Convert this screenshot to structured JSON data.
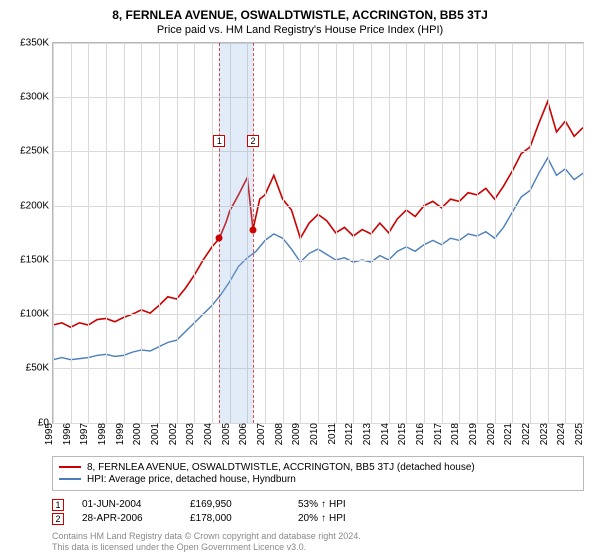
{
  "title": "8, FERNLEA AVENUE, OSWALDTWISTLE, ACCRINGTON, BB5 3TJ",
  "subtitle": "Price paid vs. HM Land Registry's House Price Index (HPI)",
  "chart": {
    "type": "line",
    "background_color": "#ffffff",
    "grid_color": "#d9d9d9",
    "axis_color": "#b8b8b8",
    "y": {
      "min": 0,
      "max": 350000,
      "step": 50000,
      "prefix": "£",
      "suffix": "K",
      "label_fontsize": 10
    },
    "x": {
      "min": 1995,
      "max": 2025,
      "step": 1,
      "label_fontsize": 10,
      "rotate": -90
    },
    "shaded_region": {
      "from_year": 2004.42,
      "to_year": 2006.32,
      "fill": "rgba(137,180,227,0.25)"
    },
    "ref_lines": [
      {
        "year": 2004.42,
        "color": "#cc0000",
        "dash": "4,3"
      },
      {
        "year": 2006.32,
        "color": "#cc0000",
        "dash": "4,3"
      }
    ],
    "ref_markers": [
      {
        "n": "1",
        "year": 2004.42,
        "y": 265000
      },
      {
        "n": "2",
        "year": 2006.32,
        "y": 265000
      }
    ],
    "sale_dots": [
      {
        "year": 2004.42,
        "value": 169950,
        "color": "#cc0000"
      },
      {
        "year": 2006.32,
        "value": 178000,
        "color": "#cc0000"
      }
    ],
    "series": [
      {
        "name": "8, FERNLEA AVENUE, OSWALDTWISTLE, ACCRINGTON, BB5 3TJ (detached house)",
        "color": "#cc0000",
        "width": 1.6,
        "points": [
          [
            1995,
            90000
          ],
          [
            1995.5,
            92000
          ],
          [
            1996,
            88000
          ],
          [
            1996.5,
            92000
          ],
          [
            1997,
            90000
          ],
          [
            1997.5,
            95000
          ],
          [
            1998,
            96000
          ],
          [
            1998.5,
            93000
          ],
          [
            1999,
            97000
          ],
          [
            1999.5,
            100000
          ],
          [
            2000,
            104000
          ],
          [
            2000.5,
            101000
          ],
          [
            2001,
            108000
          ],
          [
            2001.5,
            116000
          ],
          [
            2002,
            114000
          ],
          [
            2002.5,
            124000
          ],
          [
            2003,
            136000
          ],
          [
            2003.5,
            150000
          ],
          [
            2004,
            162000
          ],
          [
            2004.42,
            169950
          ],
          [
            2004.8,
            185000
          ],
          [
            2005,
            195000
          ],
          [
            2005.5,
            210000
          ],
          [
            2006,
            226000
          ],
          [
            2006.32,
            178000
          ],
          [
            2006.7,
            206000
          ],
          [
            2007,
            210000
          ],
          [
            2007.5,
            228000
          ],
          [
            2008,
            206000
          ],
          [
            2008.5,
            196000
          ],
          [
            2009,
            170000
          ],
          [
            2009.5,
            184000
          ],
          [
            2010,
            192000
          ],
          [
            2010.5,
            186000
          ],
          [
            2011,
            175000
          ],
          [
            2011.5,
            180000
          ],
          [
            2012,
            172000
          ],
          [
            2012.5,
            178000
          ],
          [
            2013,
            174000
          ],
          [
            2013.5,
            184000
          ],
          [
            2014,
            175000
          ],
          [
            2014.5,
            188000
          ],
          [
            2015,
            196000
          ],
          [
            2015.5,
            190000
          ],
          [
            2016,
            200000
          ],
          [
            2016.5,
            204000
          ],
          [
            2017,
            198000
          ],
          [
            2017.5,
            206000
          ],
          [
            2018,
            204000
          ],
          [
            2018.5,
            212000
          ],
          [
            2019,
            210000
          ],
          [
            2019.5,
            216000
          ],
          [
            2020,
            206000
          ],
          [
            2020.5,
            218000
          ],
          [
            2021,
            232000
          ],
          [
            2021.5,
            248000
          ],
          [
            2022,
            254000
          ],
          [
            2022.5,
            276000
          ],
          [
            2023,
            296000
          ],
          [
            2023.5,
            268000
          ],
          [
            2024,
            278000
          ],
          [
            2024.5,
            264000
          ],
          [
            2025,
            272000
          ]
        ]
      },
      {
        "name": "HPI: Average price, detached house, Hyndburn",
        "color": "#4a7ebb",
        "width": 1.4,
        "points": [
          [
            1995,
            58000
          ],
          [
            1995.5,
            60000
          ],
          [
            1996,
            58000
          ],
          [
            1996.5,
            59000
          ],
          [
            1997,
            60000
          ],
          [
            1997.5,
            62000
          ],
          [
            1998,
            63000
          ],
          [
            1998.5,
            61000
          ],
          [
            1999,
            62000
          ],
          [
            1999.5,
            65000
          ],
          [
            2000,
            67000
          ],
          [
            2000.5,
            66000
          ],
          [
            2001,
            70000
          ],
          [
            2001.5,
            74000
          ],
          [
            2002,
            76000
          ],
          [
            2002.5,
            84000
          ],
          [
            2003,
            92000
          ],
          [
            2003.5,
            100000
          ],
          [
            2004,
            108000
          ],
          [
            2004.5,
            118000
          ],
          [
            2005,
            130000
          ],
          [
            2005.5,
            144000
          ],
          [
            2006,
            152000
          ],
          [
            2006.5,
            158000
          ],
          [
            2007,
            168000
          ],
          [
            2007.5,
            174000
          ],
          [
            2008,
            170000
          ],
          [
            2008.5,
            160000
          ],
          [
            2009,
            148000
          ],
          [
            2009.5,
            156000
          ],
          [
            2010,
            160000
          ],
          [
            2010.5,
            155000
          ],
          [
            2011,
            150000
          ],
          [
            2011.5,
            152000
          ],
          [
            2012,
            148000
          ],
          [
            2012.5,
            150000
          ],
          [
            2013,
            148000
          ],
          [
            2013.5,
            154000
          ],
          [
            2014,
            150000
          ],
          [
            2014.5,
            158000
          ],
          [
            2015,
            162000
          ],
          [
            2015.5,
            158000
          ],
          [
            2016,
            164000
          ],
          [
            2016.5,
            168000
          ],
          [
            2017,
            164000
          ],
          [
            2017.5,
            170000
          ],
          [
            2018,
            168000
          ],
          [
            2018.5,
            174000
          ],
          [
            2019,
            172000
          ],
          [
            2019.5,
            176000
          ],
          [
            2020,
            170000
          ],
          [
            2020.5,
            180000
          ],
          [
            2021,
            194000
          ],
          [
            2021.5,
            208000
          ],
          [
            2022,
            214000
          ],
          [
            2022.5,
            230000
          ],
          [
            2023,
            244000
          ],
          [
            2023.5,
            228000
          ],
          [
            2024,
            234000
          ],
          [
            2024.5,
            224000
          ],
          [
            2025,
            230000
          ]
        ]
      }
    ]
  },
  "legend": {
    "rows": [
      {
        "color": "#cc0000",
        "label": "8, FERNLEA AVENUE, OSWALDTWISTLE, ACCRINGTON, BB5 3TJ (detached house)"
      },
      {
        "color": "#4a7ebb",
        "label": "HPI: Average price, detached house, Hyndburn"
      }
    ]
  },
  "transactions": [
    {
      "n": "1",
      "date": "01-JUN-2004",
      "price": "£169,950",
      "pct": "53%",
      "arrow": "↑",
      "vs": "HPI"
    },
    {
      "n": "2",
      "date": "28-APR-2006",
      "price": "£178,000",
      "pct": "20%",
      "arrow": "↑",
      "vs": "HPI"
    }
  ],
  "footer": {
    "line1": "Contains HM Land Registry data © Crown copyright and database right 2024.",
    "line2": "This data is licensed under the Open Government Licence v3.0."
  }
}
